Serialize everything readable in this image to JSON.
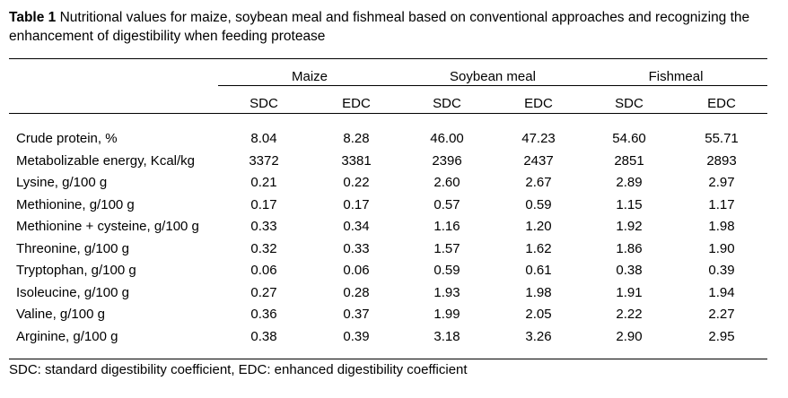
{
  "caption": {
    "label": "Table 1",
    "text": "Nutritional values for maize, soybean meal and fishmeal based on conventional approaches and recognizing the enhancement of digestibility when feeding protease"
  },
  "groups": [
    "Maize",
    "Soybean meal",
    "Fishmeal"
  ],
  "subheaders": [
    "SDC",
    "EDC",
    "SDC",
    "EDC",
    "SDC",
    "EDC"
  ],
  "rows": [
    {
      "label": "Crude protein, %",
      "values": [
        "8.04",
        "8.28",
        "46.00",
        "47.23",
        "54.60",
        "55.71"
      ]
    },
    {
      "label": "Metabolizable energy, Kcal/kg",
      "values": [
        "3372",
        "3381",
        "2396",
        "2437",
        "2851",
        "2893"
      ]
    },
    {
      "label": "Lysine, g/100 g",
      "values": [
        "0.21",
        "0.22",
        "2.60",
        "2.67",
        "2.89",
        "2.97"
      ]
    },
    {
      "label": "Methionine, g/100 g",
      "values": [
        "0.17",
        "0.17",
        "0.57",
        "0.59",
        "1.15",
        "1.17"
      ]
    },
    {
      "label": "Methionine + cysteine, g/100 g",
      "values": [
        "0.33",
        "0.34",
        "1.16",
        "1.20",
        "1.92",
        "1.98"
      ]
    },
    {
      "label": "Threonine, g/100 g",
      "values": [
        "0.32",
        "0.33",
        "1.57",
        "1.62",
        "1.86",
        "1.90"
      ]
    },
    {
      "label": "Tryptophan, g/100 g",
      "values": [
        "0.06",
        "0.06",
        "0.59",
        "0.61",
        "0.38",
        "0.39"
      ]
    },
    {
      "label": "Isoleucine, g/100 g",
      "values": [
        "0.27",
        "0.28",
        "1.93",
        "1.98",
        "1.91",
        "1.94"
      ]
    },
    {
      "label": "Valine, g/100 g",
      "values": [
        "0.36",
        "0.37",
        "1.99",
        "2.05",
        "2.22",
        "2.27"
      ]
    },
    {
      "label": "Arginine, g/100 g",
      "values": [
        "0.38",
        "0.39",
        "3.18",
        "3.26",
        "2.90",
        "2.95"
      ]
    }
  ],
  "footnote": "SDC: standard digestibility coefficient, EDC: enhanced digestibility coefficient"
}
